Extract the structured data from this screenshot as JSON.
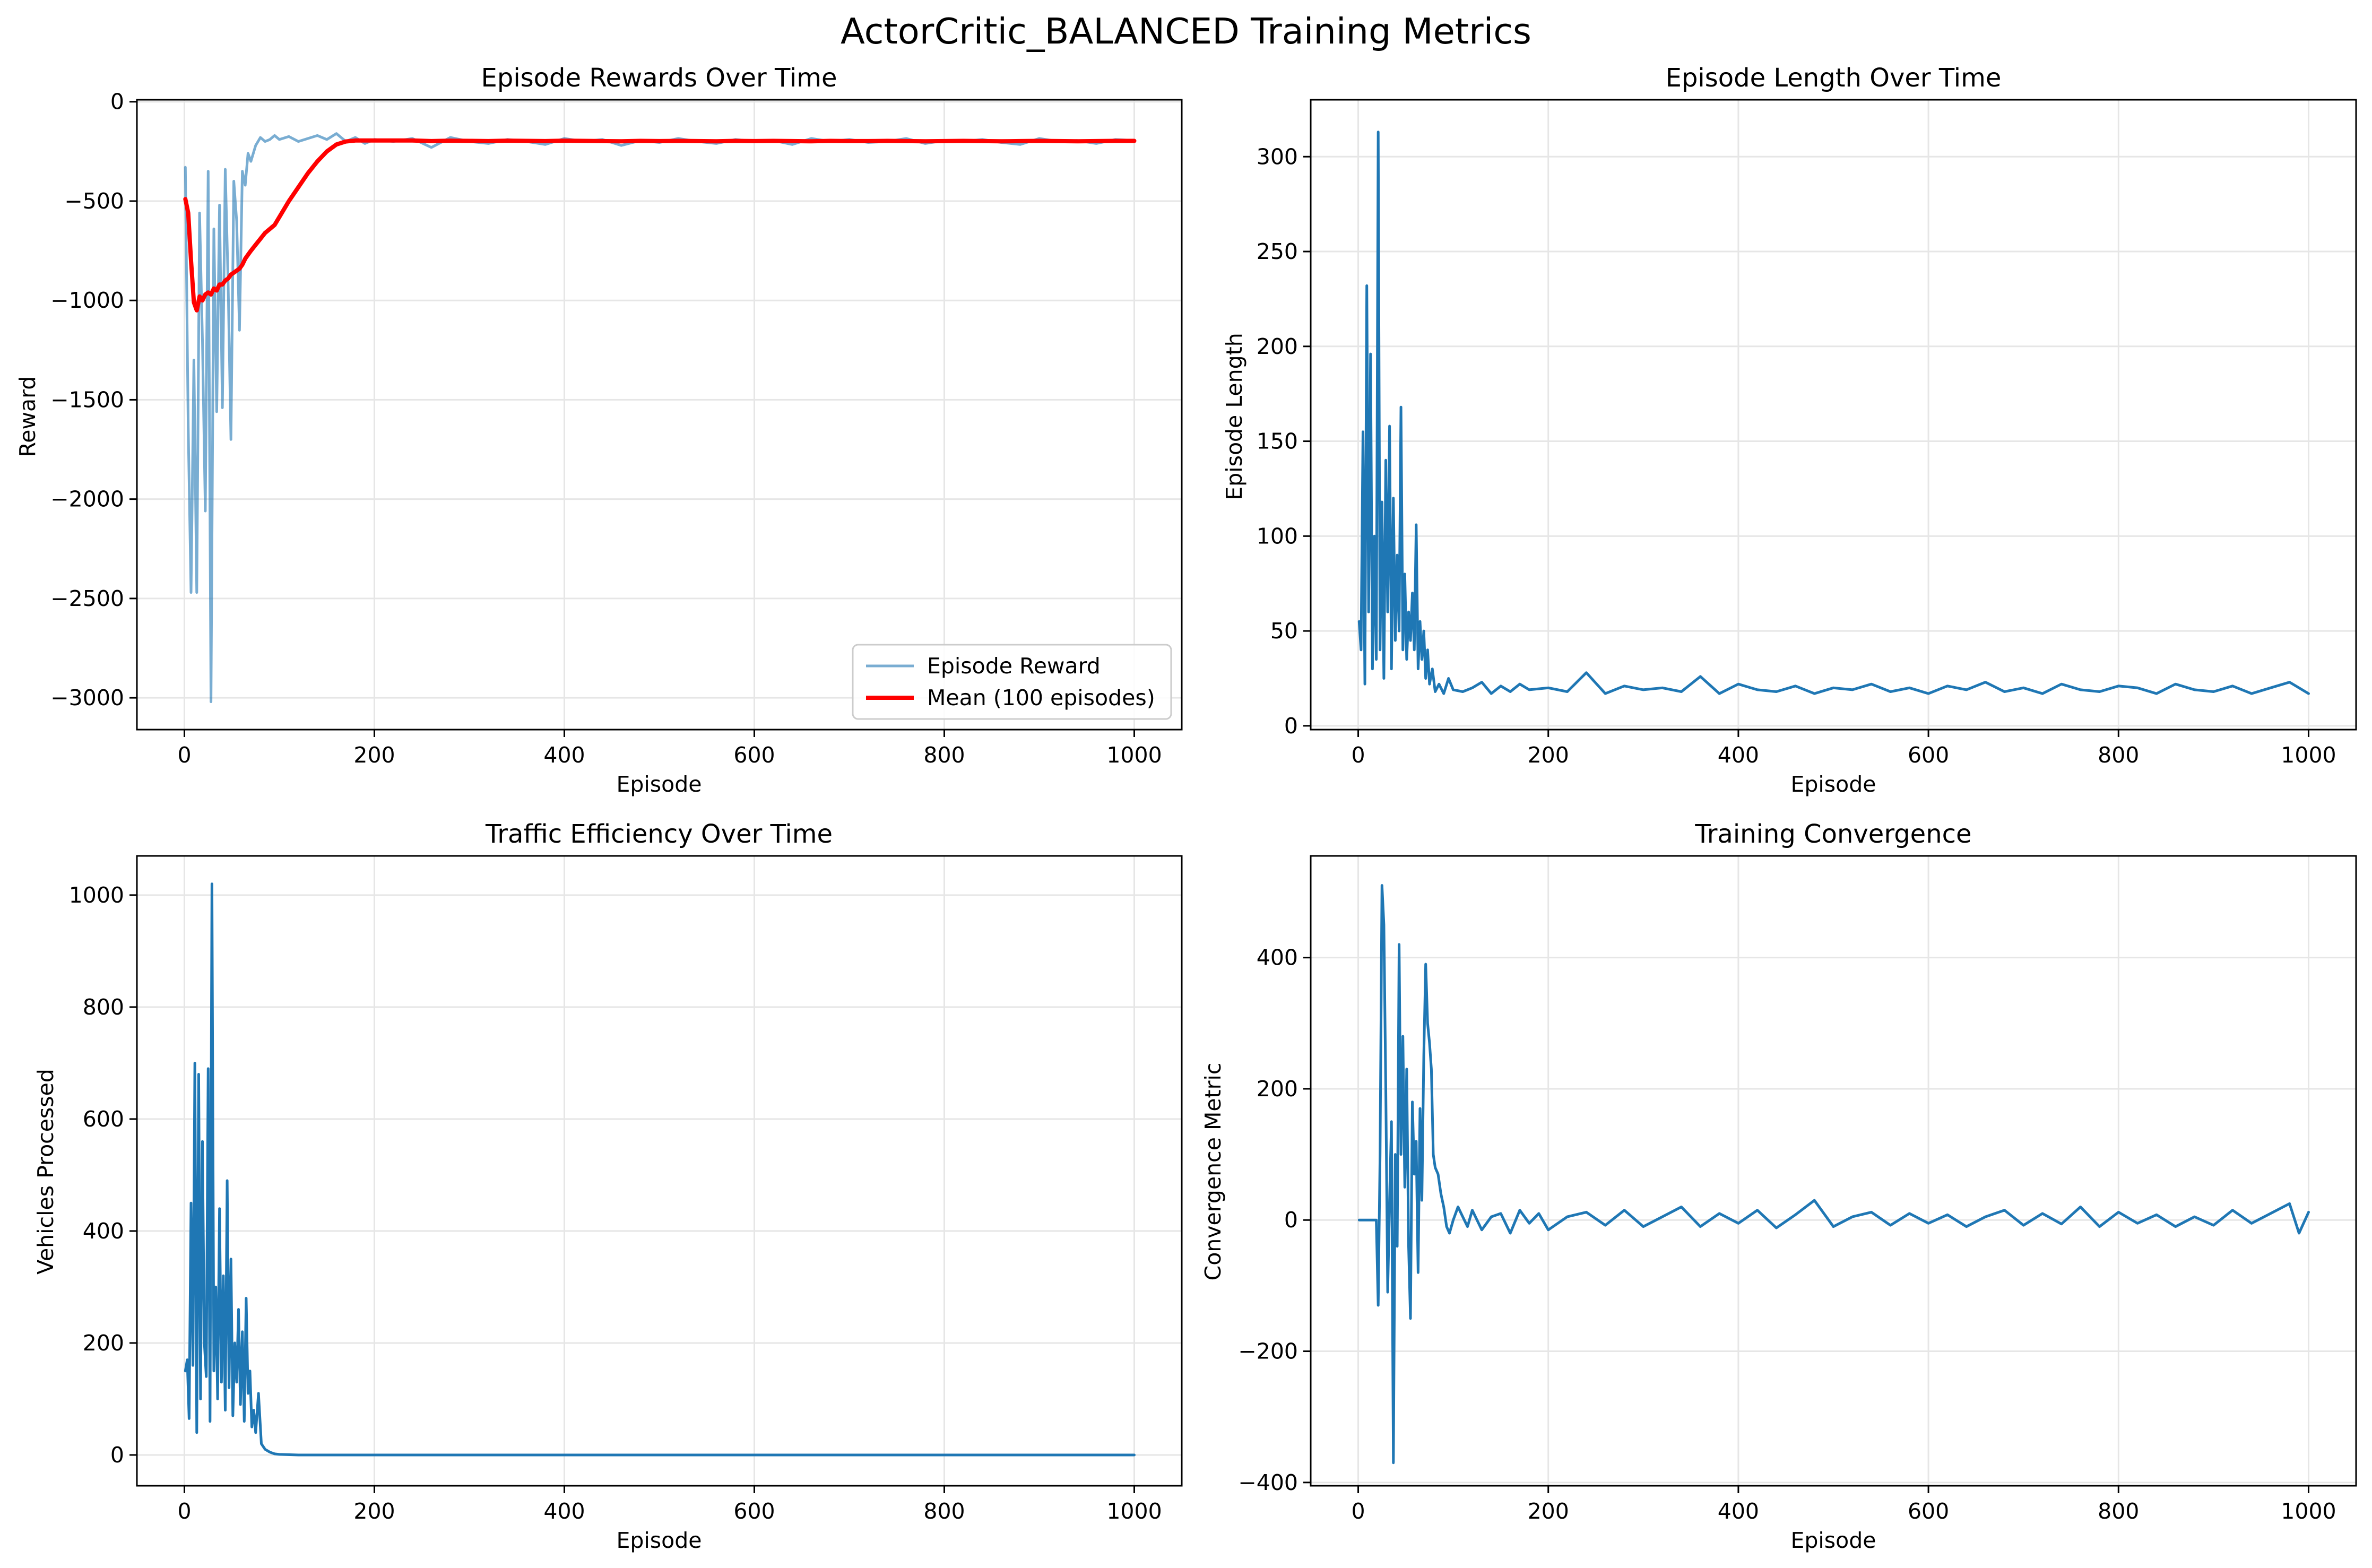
{
  "figure": {
    "suptitle": "ActorCritic_BALANCED Training Metrics"
  },
  "colors": {
    "episode_line": "#1f77b4",
    "episode_line_alpha": 0.6,
    "mean_line": "#ff0000",
    "grid": "#e6e6e6",
    "axes": "#000000"
  },
  "chart_data": [
    {
      "type": "line",
      "title": "Episode Rewards Over Time",
      "xlabel": "Episode",
      "ylabel": "Reward",
      "xlim": [
        -50,
        1050
      ],
      "ylim": [
        -3160,
        10
      ],
      "xticks": [
        0,
        200,
        400,
        600,
        800,
        1000
      ],
      "yticks": [
        -3000,
        -2500,
        -2000,
        -1500,
        -1000,
        -500,
        0
      ],
      "grid": true,
      "legend": "lower-right",
      "x": [
        1,
        4,
        7,
        10,
        13,
        16,
        19,
        22,
        25,
        28,
        31,
        34,
        37,
        40,
        43,
        46,
        49,
        52,
        55,
        58,
        61,
        64,
        67,
        70,
        75,
        80,
        85,
        90,
        95,
        100,
        110,
        120,
        130,
        140,
        150,
        160,
        170,
        180,
        190,
        200,
        220,
        240,
        260,
        280,
        300,
        320,
        340,
        360,
        380,
        400,
        420,
        440,
        460,
        480,
        500,
        520,
        540,
        560,
        580,
        600,
        620,
        640,
        660,
        680,
        700,
        720,
        740,
        760,
        780,
        800,
        820,
        840,
        860,
        880,
        900,
        920,
        940,
        960,
        980,
        1000
      ],
      "series": [
        {
          "name": "Episode Reward",
          "alpha": 0.6,
          "values": [
            -330,
            -1640,
            -2470,
            -1300,
            -2470,
            -560,
            -1200,
            -2060,
            -350,
            -3020,
            -640,
            -1560,
            -520,
            -1540,
            -340,
            -900,
            -1700,
            -400,
            -600,
            -1150,
            -350,
            -420,
            -260,
            -300,
            -220,
            -180,
            -200,
            -190,
            -170,
            -190,
            -175,
            -200,
            -185,
            -170,
            -190,
            -160,
            -200,
            -180,
            -210,
            -190,
            -200,
            -185,
            -230,
            -180,
            -200,
            -210,
            -190,
            -200,
            -215,
            -185,
            -200,
            -190,
            -220,
            -195,
            -205,
            -185,
            -200,
            -210,
            -190,
            -200,
            -195,
            -215,
            -185,
            -200,
            -190,
            -205,
            -200,
            -185,
            -210,
            -195,
            -200,
            -190,
            -205,
            -215,
            -185,
            -200,
            -195,
            -210,
            -190,
            -195
          ]
        },
        {
          "name": "Mean (100 episodes)",
          "values": [
            -490,
            -560,
            -800,
            -1010,
            -1050,
            -980,
            -1000,
            -970,
            -960,
            -970,
            -940,
            -950,
            -920,
            -920,
            -900,
            -890,
            -870,
            -860,
            -850,
            -840,
            -820,
            -790,
            -770,
            -750,
            -720,
            -690,
            -660,
            -640,
            -620,
            -580,
            -500,
            -430,
            -360,
            -300,
            -250,
            -215,
            -200,
            -195,
            -195,
            -195,
            -195,
            -195,
            -198,
            -196,
            -197,
            -198,
            -196,
            -197,
            -198,
            -196,
            -197,
            -198,
            -199,
            -197,
            -198,
            -197,
            -198,
            -199,
            -197,
            -198,
            -197,
            -198,
            -199,
            -197,
            -198,
            -198,
            -197,
            -198,
            -199,
            -198,
            -197,
            -198,
            -199,
            -198,
            -197,
            -198,
            -199,
            -198,
            -197,
            -197
          ]
        }
      ]
    },
    {
      "type": "line",
      "title": "Episode Length Over Time",
      "xlabel": "Episode",
      "ylabel": "Episode Length",
      "xlim": [
        -50,
        1050
      ],
      "ylim": [
        -2,
        330
      ],
      "xticks": [
        0,
        200,
        400,
        600,
        800,
        1000
      ],
      "yticks": [
        0,
        50,
        100,
        150,
        200,
        250,
        300
      ],
      "grid": true,
      "x": [
        1,
        3,
        5,
        7,
        9,
        11,
        13,
        15,
        17,
        19,
        21,
        23,
        25,
        27,
        29,
        31,
        33,
        35,
        37,
        39,
        41,
        43,
        45,
        47,
        49,
        51,
        53,
        55,
        57,
        59,
        61,
        63,
        65,
        67,
        69,
        71,
        73,
        75,
        78,
        81,
        85,
        90,
        95,
        100,
        110,
        120,
        130,
        140,
        150,
        160,
        170,
        180,
        200,
        220,
        240,
        260,
        280,
        300,
        320,
        340,
        360,
        380,
        400,
        420,
        440,
        460,
        480,
        500,
        520,
        540,
        560,
        580,
        600,
        620,
        640,
        660,
        680,
        700,
        720,
        740,
        760,
        780,
        800,
        820,
        840,
        860,
        880,
        900,
        920,
        940,
        960,
        980,
        1000
      ],
      "series": [
        {
          "name": "Episode Length",
          "values": [
            55,
            40,
            155,
            22,
            232,
            60,
            196,
            30,
            100,
            35,
            313,
            40,
            118,
            25,
            140,
            60,
            158,
            30,
            120,
            45,
            90,
            50,
            168,
            40,
            80,
            35,
            60,
            45,
            70,
            40,
            106,
            30,
            55,
            35,
            50,
            25,
            40,
            22,
            30,
            18,
            22,
            17,
            25,
            19,
            18,
            20,
            23,
            17,
            21,
            18,
            22,
            19,
            20,
            18,
            28,
            17,
            21,
            19,
            20,
            18,
            26,
            17,
            22,
            19,
            18,
            21,
            17,
            20,
            19,
            22,
            18,
            20,
            17,
            21,
            19,
            23,
            18,
            20,
            17,
            22,
            19,
            18,
            21,
            20,
            17,
            22,
            19,
            18,
            21,
            17,
            20,
            23,
            17
          ]
        }
      ]
    },
    {
      "type": "line",
      "title": "Traffic Efficiency Over Time",
      "xlabel": "Episode",
      "ylabel": "Vehicles Processed",
      "xlim": [
        -50,
        1050
      ],
      "ylim": [
        -55,
        1070
      ],
      "xticks": [
        0,
        200,
        400,
        600,
        800,
        1000
      ],
      "yticks": [
        0,
        200,
        400,
        600,
        800,
        1000
      ],
      "grid": true,
      "x": [
        1,
        3,
        5,
        7,
        9,
        11,
        13,
        15,
        17,
        19,
        21,
        23,
        25,
        27,
        29,
        31,
        33,
        35,
        37,
        39,
        41,
        43,
        45,
        47,
        49,
        51,
        53,
        55,
        57,
        59,
        61,
        63,
        65,
        67,
        69,
        71,
        73,
        75,
        78,
        81,
        85,
        90,
        95,
        100,
        120,
        150,
        200,
        300,
        400,
        500,
        600,
        700,
        800,
        900,
        1000
      ],
      "series": [
        {
          "name": "Vehicles Processed",
          "values": [
            150,
            170,
            65,
            450,
            160,
            700,
            40,
            680,
            100,
            560,
            200,
            140,
            690,
            60,
            1020,
            150,
            300,
            100,
            440,
            130,
            320,
            80,
            490,
            120,
            350,
            70,
            200,
            130,
            260,
            90,
            220,
            60,
            280,
            110,
            150,
            50,
            80,
            40,
            110,
            20,
            10,
            5,
            2,
            1,
            0,
            0,
            0,
            0,
            0,
            0,
            0,
            0,
            0,
            0,
            0
          ]
        }
      ]
    },
    {
      "type": "line",
      "title": "Training Convergence",
      "xlabel": "Episode",
      "ylabel": "Convergence Metric",
      "xlim": [
        -50,
        1050
      ],
      "ylim": [
        -405,
        555
      ],
      "xticks": [
        0,
        200,
        400,
        600,
        800,
        1000
      ],
      "yticks": [
        -400,
        -200,
        0,
        200,
        400
      ],
      "grid": true,
      "x": [
        1,
        5,
        10,
        15,
        19,
        21,
        23,
        25,
        27,
        29,
        31,
        33,
        35,
        37,
        39,
        41,
        43,
        45,
        47,
        49,
        51,
        53,
        55,
        57,
        59,
        61,
        63,
        65,
        67,
        69,
        71,
        73,
        75,
        77,
        79,
        81,
        84,
        87,
        90,
        93,
        96,
        100,
        105,
        110,
        115,
        120,
        130,
        140,
        150,
        160,
        170,
        180,
        190,
        200,
        220,
        240,
        260,
        280,
        300,
        320,
        340,
        360,
        380,
        400,
        420,
        440,
        460,
        480,
        500,
        520,
        540,
        560,
        580,
        600,
        620,
        640,
        660,
        680,
        700,
        720,
        740,
        760,
        780,
        800,
        820,
        840,
        860,
        880,
        900,
        920,
        940,
        960,
        980,
        990,
        1000
      ],
      "series": [
        {
          "name": "Convergence Metric",
          "values": [
            0,
            0,
            0,
            0,
            0,
            -130,
            100,
            510,
            450,
            200,
            -110,
            30,
            150,
            -370,
            100,
            -40,
            420,
            100,
            280,
            50,
            230,
            -40,
            -150,
            180,
            70,
            120,
            -80,
            170,
            30,
            250,
            390,
            300,
            270,
            230,
            100,
            80,
            70,
            40,
            20,
            -10,
            -20,
            0,
            20,
            5,
            -10,
            15,
            -15,
            5,
            10,
            -20,
            15,
            -5,
            10,
            -15,
            5,
            12,
            -8,
            15,
            -10,
            5,
            20,
            -10,
            10,
            -5,
            15,
            -12,
            8,
            30,
            -10,
            5,
            12,
            -8,
            10,
            -5,
            8,
            -10,
            5,
            15,
            -8,
            10,
            -6,
            20,
            -10,
            12,
            -5,
            8,
            -10,
            5,
            -8,
            15,
            -5,
            10,
            25,
            -20,
            12
          ]
        }
      ]
    }
  ]
}
